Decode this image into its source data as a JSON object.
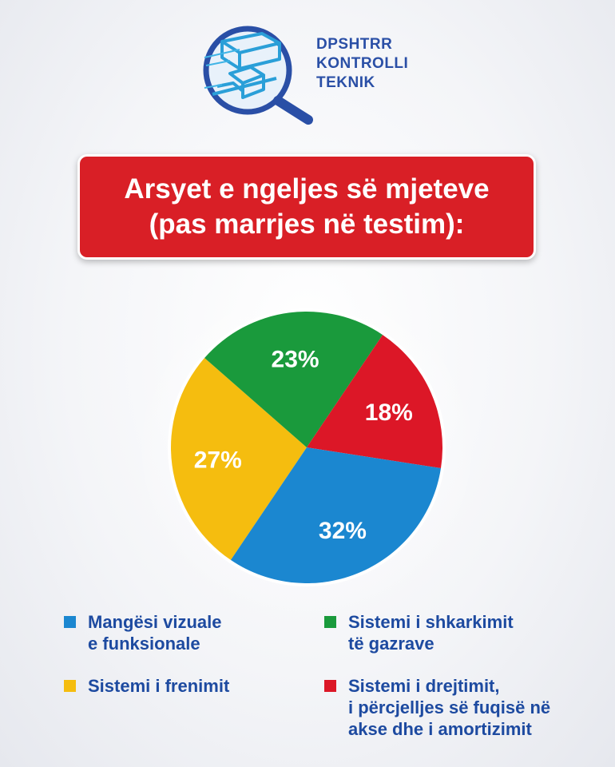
{
  "logo": {
    "line1": "DPSHTRR",
    "line2": "KONTROLLI",
    "line3": "TEKNIK"
  },
  "header": {
    "title_line1": "Arsyet e ngeljes së mjeteve",
    "title_line2": "(pas marrjes në testim):"
  },
  "chart_data": {
    "type": "pie",
    "title": "Arsyet e ngeljes së mjeteve (pas marrjes në testim):",
    "slices": [
      {
        "name": "Mangësi vizuale e funksionale",
        "value": 32,
        "label": "32%",
        "color": "#1b87d0"
      },
      {
        "name": "Sistemi i frenimit",
        "value": 27,
        "label": "27%",
        "color": "#f5bd0f"
      },
      {
        "name": "Sistemi i shkarkimit të gazrave",
        "value": 23,
        "label": "23%",
        "color": "#1a9a3c"
      },
      {
        "name": "Sistemi i drejtimit, i përcjelljes së fuqisë në akse dhe i amortizimit",
        "value": 18,
        "label": "18%",
        "color": "#dc1727"
      }
    ]
  },
  "legend": [
    {
      "text": "Mangësi vizuale\ne funksionale",
      "color": "#1b87d0"
    },
    {
      "text": "Sistemi i shkarkimit\ntë gazrave",
      "color": "#1a9a3c"
    },
    {
      "text": "Sistemi i frenimit",
      "color": "#f5bd0f"
    },
    {
      "text": "Sistemi i drejtimit,\ni përcjelljes së fuqisë në\nakse dhe i amortizimit",
      "color": "#dc1727"
    }
  ]
}
